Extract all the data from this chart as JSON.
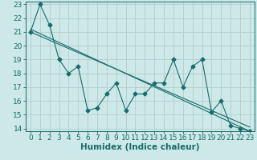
{
  "xlabel": "Humidex (Indice chaleur)",
  "ylabel": "",
  "background_color": "#cce8e8",
  "grid_color": "#b8d0d0",
  "line_color": "#1a6b6b",
  "xlim": [
    -0.5,
    23.5
  ],
  "ylim": [
    13.8,
    23.2
  ],
  "yticks": [
    14,
    15,
    16,
    17,
    18,
    19,
    20,
    21,
    22,
    23
  ],
  "xticks": [
    0,
    1,
    2,
    3,
    4,
    5,
    6,
    7,
    8,
    9,
    10,
    11,
    12,
    13,
    14,
    15,
    16,
    17,
    18,
    19,
    20,
    21,
    22,
    23
  ],
  "line1_x": [
    0,
    1,
    2,
    3,
    4,
    5,
    6,
    7,
    8,
    9,
    10,
    11,
    12,
    13,
    14,
    15,
    16,
    17,
    18,
    19,
    20,
    21,
    22,
    23
  ],
  "line1_y": [
    21.0,
    23.0,
    21.5,
    19.0,
    18.0,
    18.5,
    15.3,
    15.5,
    16.5,
    17.3,
    15.3,
    16.5,
    16.5,
    17.3,
    17.3,
    19.0,
    17.0,
    18.5,
    19.0,
    15.2,
    16.0,
    14.2,
    14.0,
    13.8
  ],
  "line2_x": [
    0,
    23
  ],
  "line2_y": [
    21.2,
    13.8
  ],
  "line3_x": [
    0,
    23
  ],
  "line3_y": [
    21.0,
    14.1
  ],
  "marker": "D",
  "marker_size": 2.5,
  "font_size": 6.5,
  "xlabel_fontsize": 7.5
}
